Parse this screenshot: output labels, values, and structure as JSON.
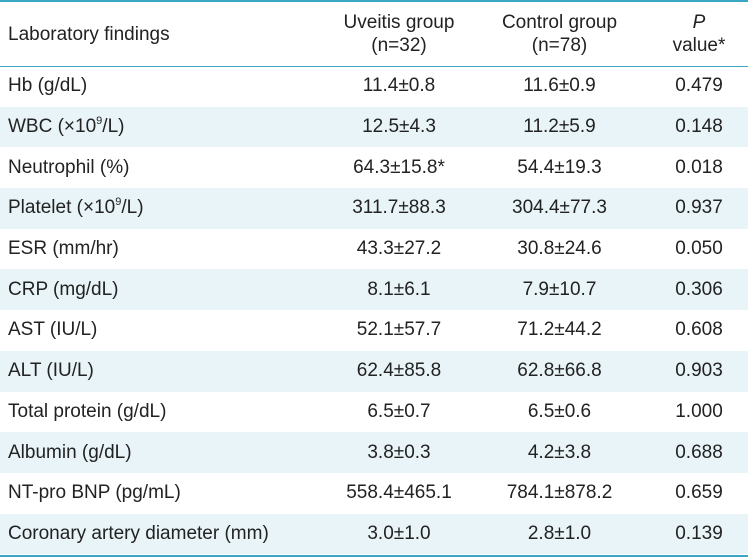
{
  "header": {
    "col1": "Laboratory findings",
    "col2_line1": "Uveitis group",
    "col2_line2": "(n=32)",
    "col3_line1": "Control group",
    "col3_line2": "(n=78)",
    "col4_line1": "P",
    "col4_line2": "value*"
  },
  "rows": [
    {
      "pre": "Hb (g/dL)",
      "sup": "",
      "post": "",
      "uveitis": "11.4±0.8",
      "control": "11.6±0.9",
      "p": "0.479"
    },
    {
      "pre": "WBC (×10",
      "sup": "9",
      "post": "/L)",
      "uveitis": "12.5±4.3",
      "control": "11.2±5.9",
      "p": "0.148"
    },
    {
      "pre": "Neutrophil (%)",
      "sup": "",
      "post": "",
      "uveitis": "64.3±15.8*",
      "control": "54.4±19.3",
      "p": "0.018"
    },
    {
      "pre": "Platelet (×10",
      "sup": "9",
      "post": "/L)",
      "uveitis": "311.7±88.3",
      "control": "304.4±77.3",
      "p": "0.937"
    },
    {
      "pre": "ESR (mm/hr)",
      "sup": "",
      "post": "",
      "uveitis": "43.3±27.2",
      "control": "30.8±24.6",
      "p": "0.050"
    },
    {
      "pre": "CRP (mg/dL)",
      "sup": "",
      "post": "",
      "uveitis": "8.1±6.1",
      "control": "7.9±10.7",
      "p": "0.306"
    },
    {
      "pre": "AST (IU/L)",
      "sup": "",
      "post": "",
      "uveitis": "52.1±57.7",
      "control": "71.2±44.2",
      "p": "0.608"
    },
    {
      "pre": "ALT (IU/L)",
      "sup": "",
      "post": "",
      "uveitis": "62.4±85.8",
      "control": "62.8±66.8",
      "p": "0.903"
    },
    {
      "pre": "Total protein (g/dL)",
      "sup": "",
      "post": "",
      "uveitis": "6.5±0.7",
      "control": "6.5±0.6",
      "p": "1.000"
    },
    {
      "pre": "Albumin (g/dL)",
      "sup": "",
      "post": "",
      "uveitis": "3.8±0.3",
      "control": "4.2±3.8",
      "p": "0.688"
    },
    {
      "pre": "NT-pro BNP (pg/mL)",
      "sup": "",
      "post": "",
      "uveitis": "558.4±465.1",
      "control": "784.1±878.2",
      "p": "0.659"
    },
    {
      "pre": "Coronary artery diameter (mm)",
      "sup": "",
      "post": "",
      "uveitis": "3.0±1.0",
      "control": "2.8±1.0",
      "p": "0.139"
    }
  ],
  "colors": {
    "rule": "#3aa6c4",
    "shade": "#e9f4f8",
    "text": "#222222"
  }
}
